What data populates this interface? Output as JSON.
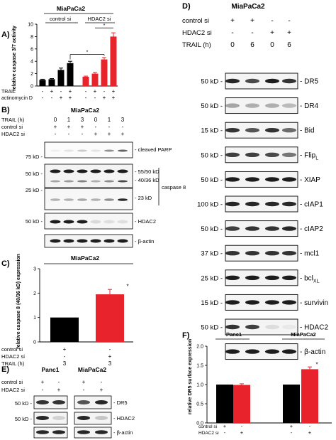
{
  "panel_a": {
    "letter": "A)",
    "title": "MiaPaCa2",
    "group1": "control si",
    "group2": "HDAC2 si",
    "ylabel": "relative caspase 3/7 activity",
    "yticks": [
      "0",
      "2",
      "4",
      "6",
      "8",
      "10"
    ],
    "row_labels": [
      "TRAIL",
      "actinomycin D"
    ],
    "row_signs": [
      [
        "-",
        "+",
        "-",
        "+",
        "-",
        "+",
        "-",
        "+"
      ],
      [
        "-",
        "-",
        "+",
        "+",
        "-",
        "-",
        "+",
        "+"
      ]
    ],
    "star": "*"
  },
  "panel_b": {
    "letter": "B)",
    "title": "MiaPaCa2",
    "row_labels": [
      "TRAIL (h)",
      "control si",
      "HDAC2 si"
    ],
    "row_values": [
      [
        "0",
        "1",
        "3",
        "0",
        "1",
        "3"
      ],
      [
        "+",
        "+",
        "+",
        "-",
        "-",
        "-"
      ],
      [
        "-",
        "-",
        "-",
        "+",
        "+",
        "+"
      ]
    ],
    "kd_labels": [
      "75 kD -",
      "50 kD -",
      "25 kD -",
      "50 kD -"
    ],
    "band_labels": [
      "- cleaved PARP",
      "- 55/50 kD",
      "- 40/36 kD",
      "- 23 kD",
      "- HDAC2",
      "- β-actin"
    ],
    "caspase_label": "caspase 8"
  },
  "panel_c": {
    "letter": "C)",
    "title": "MiaPaCa2",
    "ylabel": "relative caspase 8 (40/36 kD) expression",
    "yticks": [
      "0",
      "1",
      "2",
      "3"
    ],
    "row_labels": [
      "control si",
      "HDAC2 si",
      "TRAIL (h)"
    ],
    "row_values": [
      [
        "+",
        "-"
      ],
      [
        "-",
        "+"
      ],
      [
        "3",
        "3"
      ]
    ],
    "star": "*"
  },
  "panel_d": {
    "letter": "D)",
    "title": "MiaPaCa2",
    "row_labels": [
      "control si",
      "HDAC2 si",
      "TRAIL (h)"
    ],
    "row_values": [
      [
        "+",
        "+",
        "-",
        "-"
      ],
      [
        "-",
        "-",
        "+",
        "+"
      ],
      [
        "0",
        "6",
        "0",
        "6"
      ]
    ],
    "kd_labels": [
      "50 kD -",
      "50 kD -",
      "15 kD -",
      "50 kD -",
      "50 kD -",
      "100 kD -",
      "50 kD -",
      "37 kD -",
      "25 kD -",
      "15 kD -",
      "50 kD -",
      ""
    ],
    "blot_labels": [
      "- DR5",
      "- DR4",
      "- Bid",
      "- Flip",
      "- XIAP",
      "- cIAP1",
      "- cIAP2",
      "- mcl1",
      "- bcl",
      "- survivin",
      "- HDAC2",
      "- β-actin"
    ],
    "blot_subs": [
      "",
      "",
      "",
      "L",
      "",
      "",
      "",
      "",
      "XL",
      "",
      "",
      ""
    ]
  },
  "panel_e": {
    "letter": "E)",
    "group1": "Panc1",
    "group2": "MiaPaCa2",
    "row_labels": [
      "control si",
      "HDAC2 si"
    ],
    "row_values": [
      [
        "+",
        "-",
        "+",
        "-"
      ],
      [
        "-",
        "+",
        "-",
        "+"
      ]
    ],
    "kd_labels": [
      "50 kD -",
      "50 kD -"
    ],
    "band_labels": [
      "- DR5",
      "- HDAC2",
      "- β-actin"
    ]
  },
  "panel_f": {
    "letter": "F)",
    "group1": "Panc1",
    "group2": "MiaPaCa2",
    "ylabel": "relative DR5 surface expression",
    "yticks": [
      "0.0",
      "0.5",
      "1.0",
      "1.5",
      "2.0"
    ],
    "row_labels": [
      "control si",
      "HDAC2 si"
    ],
    "row_values": [
      [
        "+",
        "-",
        "+",
        "-"
      ],
      [
        "-",
        "+",
        "-",
        "+"
      ]
    ],
    "star": "*"
  },
  "colors": {
    "control": "#000000",
    "hdac2": "#e8232b"
  },
  "chart_data": [
    {
      "type": "bar",
      "panel": "A",
      "title": "MiaPaCa2",
      "ylabel": "relative caspase 3/7 activity",
      "ylim": [
        0,
        10
      ],
      "categories": [
        "control si",
        "control si + TRAIL",
        "control si + actinomycin D",
        "control si + TRAIL + actinomycin D",
        "HDAC2 si",
        "HDAC2 si + TRAIL",
        "HDAC2 si + actinomycin D",
        "HDAC2 si + TRAIL + actinomycin D"
      ],
      "values": [
        1.0,
        1.1,
        2.6,
        3.7,
        1.5,
        2.0,
        4.3,
        8.0
      ],
      "errors": [
        0.1,
        0.1,
        0.3,
        0.3,
        0.1,
        0.2,
        0.3,
        0.6
      ],
      "bar_colors": [
        "#000000",
        "#000000",
        "#000000",
        "#000000",
        "#e8232b",
        "#e8232b",
        "#e8232b",
        "#e8232b"
      ]
    },
    {
      "type": "bar",
      "panel": "C",
      "title": "MiaPaCa2",
      "ylabel": "relative caspase 8 (40/36 kD) expression",
      "ylim": [
        0,
        3
      ],
      "categories": [
        "control si / TRAIL 3h",
        "HDAC2 si / TRAIL 3h"
      ],
      "values": [
        1.0,
        1.95
      ],
      "errors": [
        0,
        0.2
      ],
      "bar_colors": [
        "#000000",
        "#e8232b"
      ]
    },
    {
      "type": "bar",
      "panel": "F",
      "ylabel": "relative DR5 surface expression",
      "ylim": [
        0,
        2
      ],
      "categories": [
        "Panc1 control si",
        "Panc1 HDAC2 si",
        "MiaPaCa2 control si",
        "MiaPaCa2 HDAC2 si"
      ],
      "values": [
        1.0,
        0.99,
        1.0,
        1.4
      ],
      "errors": [
        0,
        0.03,
        0,
        0.06
      ],
      "bar_colors": [
        "#000000",
        "#e8232b",
        "#000000",
        "#e8232b"
      ]
    }
  ]
}
